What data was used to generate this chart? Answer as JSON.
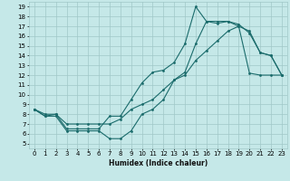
{
  "xlabel": "Humidex (Indice chaleur)",
  "bg_color": "#c5e8e8",
  "grid_color": "#a0c8c8",
  "line_color": "#1a6b6b",
  "xlim": [
    -0.5,
    23.5
  ],
  "ylim": [
    4.5,
    19.5
  ],
  "xticks": [
    0,
    1,
    2,
    3,
    4,
    5,
    6,
    7,
    8,
    9,
    10,
    11,
    12,
    13,
    14,
    15,
    16,
    17,
    18,
    19,
    20,
    21,
    22,
    23
  ],
  "yticks": [
    5,
    6,
    7,
    8,
    9,
    10,
    11,
    12,
    13,
    14,
    15,
    16,
    17,
    18,
    19
  ],
  "line1_x": [
    0,
    1,
    2,
    3,
    4,
    5,
    6,
    7,
    8,
    9,
    10,
    11,
    12,
    13,
    14,
    15,
    16,
    17,
    18,
    19,
    20,
    21,
    22,
    23
  ],
  "line1_y": [
    8.5,
    7.8,
    7.8,
    6.3,
    6.3,
    6.3,
    6.3,
    5.5,
    5.5,
    6.3,
    8.0,
    8.5,
    9.5,
    11.5,
    12.3,
    15.2,
    17.5,
    17.3,
    17.5,
    17.2,
    16.3,
    14.3,
    14.0,
    12.0
  ],
  "line2_x": [
    0,
    1,
    2,
    3,
    4,
    5,
    6,
    7,
    8,
    9,
    10,
    11,
    12,
    13,
    14,
    15,
    16,
    17,
    18,
    19,
    20,
    21,
    22,
    23
  ],
  "line2_y": [
    8.5,
    7.8,
    8.0,
    6.5,
    6.5,
    6.5,
    6.5,
    7.8,
    7.8,
    9.5,
    11.2,
    12.3,
    12.5,
    13.3,
    15.2,
    19.0,
    17.5,
    17.5,
    17.5,
    17.0,
    16.5,
    14.3,
    14.0,
    12.0
  ],
  "line3_x": [
    0,
    1,
    2,
    3,
    4,
    5,
    6,
    7,
    8,
    9,
    10,
    11,
    12,
    13,
    14,
    15,
    16,
    17,
    18,
    19,
    20,
    21,
    22,
    23
  ],
  "line3_y": [
    8.5,
    8.0,
    8.0,
    7.0,
    7.0,
    7.0,
    7.0,
    7.0,
    7.5,
    8.5,
    9.0,
    9.5,
    10.5,
    11.5,
    12.0,
    13.5,
    14.5,
    15.5,
    16.5,
    17.0,
    12.2,
    12.0,
    12.0,
    12.0
  ]
}
